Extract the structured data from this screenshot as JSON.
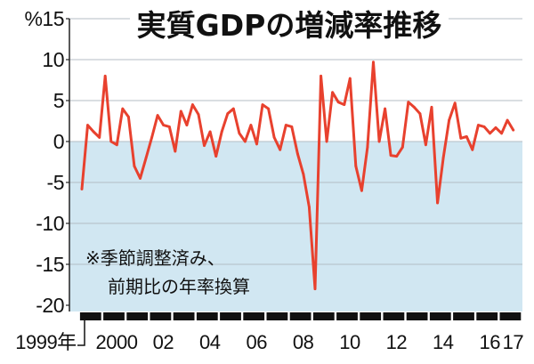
{
  "chart_data": {
    "type": "line",
    "title": "実質GDPの増減率推移",
    "yunit": "%",
    "ylim": [
      -20,
      15
    ],
    "yticks": [
      15,
      10,
      5,
      0,
      -5,
      -10,
      -15,
      -20
    ],
    "xticks": [
      {
        "label": "1999年",
        "year": 1999
      },
      {
        "label": "2000",
        "year": 2000
      },
      {
        "label": "02",
        "year": 2002
      },
      {
        "label": "04",
        "year": 2004
      },
      {
        "label": "06",
        "year": 2006
      },
      {
        "label": "08",
        "year": 2008
      },
      {
        "label": "10",
        "year": 2010
      },
      {
        "label": "12",
        "year": 2012
      },
      {
        "label": "14",
        "year": 2014
      },
      {
        "label": "16",
        "year": 2016
      },
      {
        "label": "17",
        "year": 2017
      }
    ],
    "grid": true,
    "note_lines": [
      "※季節調整済み、",
      "前期比の年率換算"
    ],
    "colors": {
      "below_zero_fill": "#d1e7f2"
    },
    "series": [
      {
        "color": "#e8412e",
        "data": [
          {
            "year": 1999,
            "quarterly": [
              -5.8,
              2.0,
              1.2,
              0.5
            ]
          },
          {
            "year": 2000,
            "quarterly": [
              8.0,
              0.0,
              -0.4,
              4.0
            ]
          },
          {
            "year": 2001,
            "quarterly": [
              3.0,
              -3.0,
              -4.5,
              -2.0
            ]
          },
          {
            "year": 2002,
            "quarterly": [
              0.5,
              3.2,
              2.0,
              1.8
            ]
          },
          {
            "year": 2003,
            "quarterly": [
              -1.2,
              3.7,
              2.0,
              4.5
            ]
          },
          {
            "year": 2004,
            "quarterly": [
              3.3,
              -0.5,
              1.2,
              -1.8
            ]
          },
          {
            "year": 2005,
            "quarterly": [
              1.2,
              3.4,
              4.0,
              1.0
            ]
          },
          {
            "year": 2006,
            "quarterly": [
              0.0,
              2.0,
              -0.3,
              4.5
            ]
          },
          {
            "year": 2007,
            "quarterly": [
              4.0,
              0.5,
              -1.0,
              2.0
            ]
          },
          {
            "year": 2008,
            "quarterly": [
              1.8,
              -1.5,
              -4.0,
              -8.0
            ]
          },
          {
            "year": 2009,
            "quarterly": [
              -18.0,
              8.0,
              0.0,
              6.0
            ]
          },
          {
            "year": 2010,
            "quarterly": [
              4.8,
              4.5,
              7.7,
              -3.0
            ]
          },
          {
            "year": 2011,
            "quarterly": [
              -6.0,
              -0.7,
              9.7,
              0.0
            ]
          },
          {
            "year": 2012,
            "quarterly": [
              4.0,
              -1.7,
              -1.8,
              -0.7
            ]
          },
          {
            "year": 2013,
            "quarterly": [
              4.8,
              4.2,
              3.4,
              -0.4
            ]
          },
          {
            "year": 2014,
            "quarterly": [
              4.2,
              -7.5,
              -2.0,
              2.6
            ]
          },
          {
            "year": 2015,
            "quarterly": [
              4.7,
              0.4,
              0.6,
              -1.0
            ]
          },
          {
            "year": 2016,
            "quarterly": [
              2.0,
              1.8,
              1.0,
              1.7
            ]
          },
          {
            "year": 2017,
            "quarterly": [
              1.0,
              2.6,
              1.4
            ]
          }
        ]
      }
    ]
  }
}
